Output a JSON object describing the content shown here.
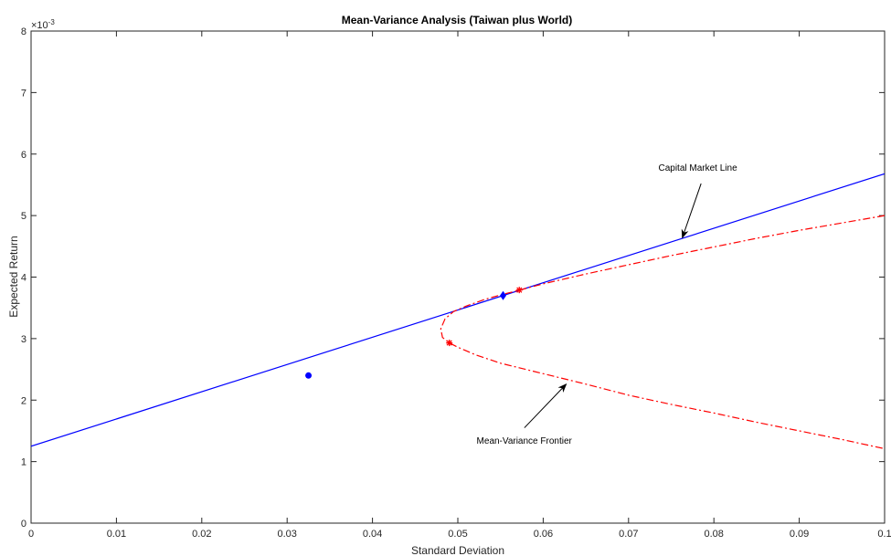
{
  "chart_data": {
    "type": "line",
    "title": "Mean-Variance Analysis (Taiwan plus World)",
    "xlabel": "Standard Deviation",
    "ylabel": "Expected Return",
    "y_exponent_label": "×10",
    "y_exponent_power": "-3",
    "xlim": [
      0,
      0.1
    ],
    "ylim": [
      0,
      8
    ],
    "x_ticks": [
      0,
      0.01,
      0.02,
      0.03,
      0.04,
      0.05,
      0.06,
      0.07,
      0.08,
      0.09,
      0.1
    ],
    "x_tick_labels": [
      "0",
      "0.01",
      "0.02",
      "0.03",
      "0.04",
      "0.05",
      "0.06",
      "0.07",
      "0.08",
      "0.09",
      "0.1"
    ],
    "y_ticks": [
      0,
      1,
      2,
      3,
      4,
      5,
      6,
      7,
      8
    ],
    "y_tick_labels": [
      "0",
      "1",
      "2",
      "3",
      "4",
      "5",
      "6",
      "7",
      "8"
    ],
    "grid": false,
    "series": [
      {
        "style": "solid",
        "color": "#0000ff",
        "x": [
          0,
          0.1
        ],
        "y": [
          1.25,
          5.68
        ]
      },
      {
        "style": "dash-dot",
        "color": "#ff0000",
        "x": [
          0.1,
          0.095,
          0.09,
          0.085,
          0.08,
          0.075,
          0.07,
          0.065,
          0.06,
          0.057,
          0.055,
          0.053,
          0.051,
          0.0495,
          0.0485,
          0.048,
          0.0482,
          0.049,
          0.05,
          0.052,
          0.055,
          0.06,
          0.065,
          0.07,
          0.075,
          0.08,
          0.085,
          0.09,
          0.095,
          0.1
        ],
        "y": [
          5.0,
          4.88,
          4.76,
          4.63,
          4.49,
          4.35,
          4.2,
          4.05,
          3.89,
          3.78,
          3.71,
          3.63,
          3.53,
          3.44,
          3.32,
          3.16,
          3.02,
          2.93,
          2.86,
          2.74,
          2.6,
          2.43,
          2.26,
          2.08,
          1.93,
          1.79,
          1.64,
          1.5,
          1.36,
          1.21
        ]
      }
    ],
    "markers": [
      {
        "shape": "circle",
        "color": "#0000ff",
        "x": 0.0325,
        "y": 2.4
      },
      {
        "shape": "diamond",
        "color": "#0000ff",
        "x": 0.0553,
        "y": 3.7
      },
      {
        "shape": "star",
        "color": "#ff0000",
        "x": 0.0572,
        "y": 3.79
      },
      {
        "shape": "star",
        "color": "#ff0000",
        "x": 0.049,
        "y": 2.93
      }
    ],
    "annotations": [
      {
        "text": "Capital Market Line",
        "text_x": 0.0735,
        "text_y": 5.73,
        "arrow_from": [
          0.0785,
          5.52
        ],
        "arrow_to": [
          0.0763,
          4.64
        ]
      },
      {
        "text": "Mean-Variance Frontier",
        "text_x": 0.0522,
        "text_y": 1.29,
        "arrow_from": [
          0.0578,
          1.55
        ],
        "arrow_to": [
          0.0627,
          2.26
        ]
      }
    ]
  }
}
